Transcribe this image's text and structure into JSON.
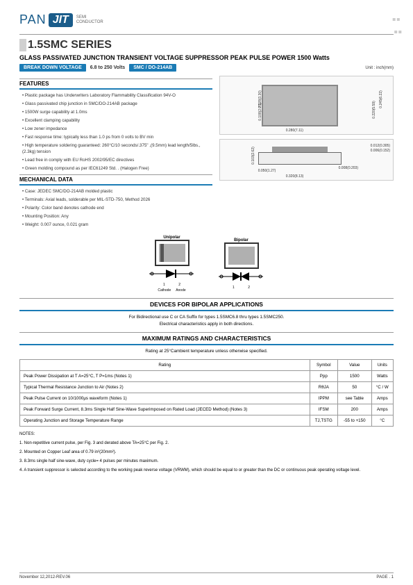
{
  "logo": {
    "pan": "PAN",
    "jit": "JIT",
    "sub1": "SEMI",
    "sub2": "CONDUCTOR"
  },
  "series_title": "1.5SMC SERIES",
  "subtitle": "GLASS PASSIVATED JUNCTION TRANSIENT VOLTAGE SUPPRESSOR  PEAK PULSE POWER  1500 Watts",
  "tags": {
    "breakdown": "BREAK DOWN VOLTAGE",
    "range": "6.8  to  250 Volts",
    "package": "SMC / DO-214AB",
    "unit": "Unit : inch(mm)"
  },
  "features_head": "FEATURES",
  "features": [
    "Plastic package has Underwriters Laboratory Flammability Classification 94V-O",
    "Glass passivated chip junction in SMC/DO-214AB package",
    "1500W surge capability at 1.0ms",
    "Excellent clamping capability",
    "Low zener impedance",
    "Fast response time: typically less than 1.0 ps from 0 volts to BV min",
    "High temperature soldering guaranteed: 260°C/10 seconds/.375\" ,(9.5mm) lead length/5lbs., (2.3kg) tension",
    "Lead free in comply with EU RoHS 2002/95/EC directives",
    "Green molding compound as per IEC61249 Std. . (Halogen Free)"
  ],
  "mech_head": "MECHANICAL DATA",
  "mech": [
    "Case: JEDEC SMC/DO-214AB  molded plastic",
    "Terminals: Axial leads, solderable per MIL-STD-750, Method 2026",
    "Polarity:  Color band denotes cathode end",
    "Mounting Position: Any",
    "Weight: 0.007 ounce, 0.021 gram"
  ],
  "top_dims": {
    "w": "0.280(7.11)",
    "w2": "0.260(6.60)",
    "h": "0.245(6.22)",
    "h2": "0.220(5.59)",
    "l1": "0.128(3.30)",
    "l2": "0.108(2.75)"
  },
  "side_dims": {
    "t": "0.012(0.305)",
    "t2": "0.006(0.152)",
    "h": "0.103(2.62)",
    "h2": "0.079(2.00)",
    "p": "0.050(1.27)",
    "p2": "0.030(0.76)",
    "w": "0.320(8.13)",
    "w2": "0.285(7.24)",
    "s": "0.008(0.203)"
  },
  "polarity": {
    "uni": "Unipolar",
    "bi": "Bipolar",
    "cathode": "Cathode",
    "anode": "Anode",
    "t1": "1",
    "t2": "2"
  },
  "bipolar_head": "DEVICES FOR BIPOLAR APPLICATIONS",
  "bipolar_text1": "For Bidirectional use C or CA Suffix for types 1.5SMC6.8 thru types 1.5SMC250.",
  "bipolar_text2": "Electrical characteristics apply in both directions.",
  "ratings_head": "MAXIMUM RATINGS AND CHARACTERISTICS",
  "ratings_sub": "Rating at 25°Cambient temperature unless otherwise specified.",
  "ratings_cols": [
    "Rating",
    "Symbol",
    "Value",
    "Units"
  ],
  "ratings_rows": [
    [
      "Peak Power Dissipation at T A=25°C, T P=1ms (Notes 1)",
      "Ppp",
      "1500",
      "Watts"
    ],
    [
      "Typical Thermal Resistance Junction to Air (Notes 2)",
      "RθJA",
      "50",
      "°C / W"
    ],
    [
      "Peak Pulse Current on 10/1000μs waveform (Notes 1)",
      "IPPM",
      "see Table",
      "Amps"
    ],
    [
      "Peak Forward Surge Current, 8.3ms Single Half Sine-Wave Superimposed on Rated Load (JECED Method) (Notes 3)",
      "IFSM",
      "200",
      "Amps"
    ],
    [
      "Operating Junction and Storage Temperature Range",
      "TJ,TSTG",
      "-55 to +150",
      "°C"
    ]
  ],
  "notes_head": "NOTES:",
  "notes": [
    "1. Non-repetitive current pulse, per Fig. 3 and derated above TA=25°C per Fig. 2.",
    "2. Mounted on Copper Leaf area of  0.79 in²(20mm²).",
    "3. 8.3ms single half sine-wave, duty cycle= 4 pulses per minutes maximum.",
    "4. A transient suppressor is selected according to the working peak reverse voltage (VRWM), which should be equal to or greater than the DC or continuous peak operating voltage level."
  ],
  "footer": {
    "date": "November 12,2012-REV.06",
    "page": "PAGE .  1"
  }
}
